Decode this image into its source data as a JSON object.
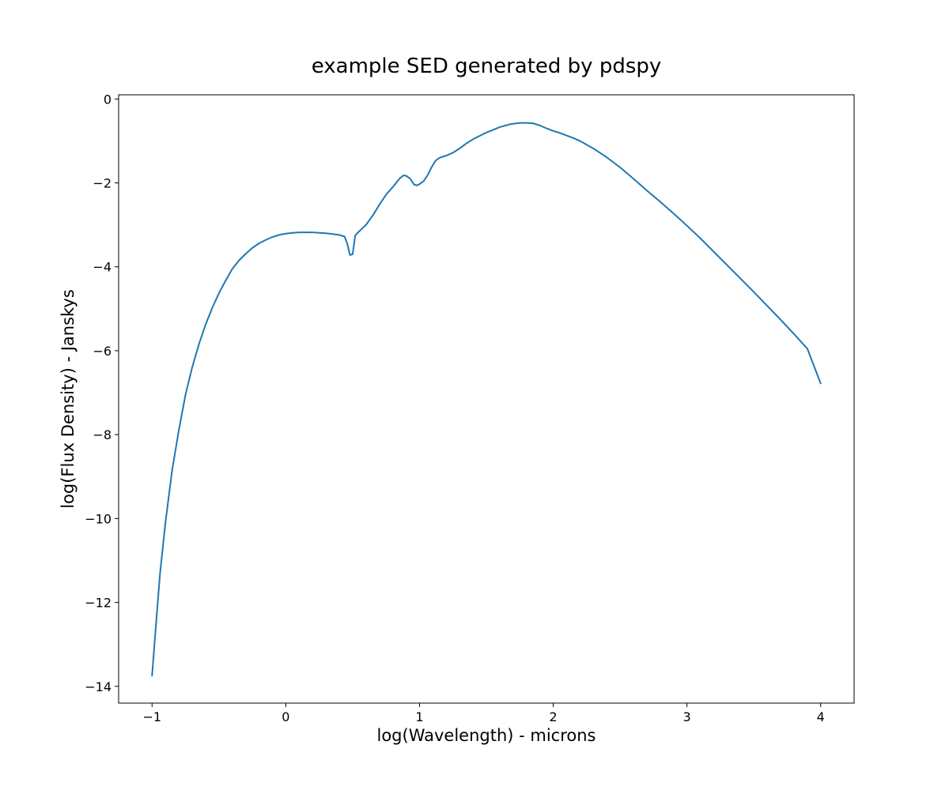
{
  "chart_data": {
    "type": "line",
    "title": "example SED generated by pdspy",
    "xlabel": "log(Wavelength) - microns",
    "ylabel": "log(Flux Density) - Janskys",
    "xlim": [
      -1.25,
      4.25
    ],
    "ylim": [
      -14.4,
      0.1
    ],
    "xticks": [
      -1,
      0,
      1,
      2,
      3,
      4
    ],
    "xtick_labels": [
      "−1",
      "0",
      "1",
      "2",
      "3",
      "4"
    ],
    "yticks": [
      0,
      -2,
      -4,
      -6,
      -8,
      -10,
      -12,
      -14
    ],
    "ytick_labels": [
      "0",
      "−2",
      "−4",
      "−6",
      "−8",
      "−10",
      "−12",
      "−14"
    ],
    "grid": false,
    "legend": "none",
    "series": [
      {
        "color": "#1f77b4",
        "x": [
          -1.0,
          -0.97,
          -0.94,
          -0.9,
          -0.85,
          -0.8,
          -0.75,
          -0.7,
          -0.65,
          -0.6,
          -0.55,
          -0.5,
          -0.45,
          -0.4,
          -0.35,
          -0.3,
          -0.25,
          -0.2,
          -0.15,
          -0.1,
          -0.05,
          0.0,
          0.05,
          0.1,
          0.15,
          0.2,
          0.25,
          0.3,
          0.35,
          0.4,
          0.44,
          0.46,
          0.48,
          0.5,
          0.52,
          0.55,
          0.6,
          0.65,
          0.7,
          0.75,
          0.8,
          0.85,
          0.88,
          0.9,
          0.93,
          0.96,
          0.98,
          1.0,
          1.03,
          1.06,
          1.09,
          1.12,
          1.15,
          1.2,
          1.25,
          1.3,
          1.35,
          1.4,
          1.5,
          1.6,
          1.68,
          1.75,
          1.8,
          1.85,
          1.9,
          1.95,
          2.0,
          2.05,
          2.1,
          2.15,
          2.2,
          2.3,
          2.4,
          2.5,
          2.6,
          2.7,
          2.8,
          2.9,
          3.0,
          3.1,
          3.2,
          3.3,
          3.4,
          3.5,
          3.6,
          3.7,
          3.8,
          3.9,
          4.0
        ],
        "y": [
          -13.75,
          -12.5,
          -11.3,
          -10.1,
          -8.85,
          -7.9,
          -7.05,
          -6.4,
          -5.85,
          -5.38,
          -4.98,
          -4.63,
          -4.33,
          -4.05,
          -3.85,
          -3.69,
          -3.55,
          -3.44,
          -3.36,
          -3.29,
          -3.24,
          -3.21,
          -3.19,
          -3.18,
          -3.18,
          -3.18,
          -3.19,
          -3.2,
          -3.22,
          -3.24,
          -3.28,
          -3.45,
          -3.72,
          -3.7,
          -3.25,
          -3.15,
          -3.0,
          -2.78,
          -2.52,
          -2.28,
          -2.1,
          -1.9,
          -1.82,
          -1.83,
          -1.9,
          -2.04,
          -2.06,
          -2.03,
          -1.96,
          -1.82,
          -1.63,
          -1.47,
          -1.4,
          -1.35,
          -1.28,
          -1.18,
          -1.06,
          -0.96,
          -0.8,
          -0.67,
          -0.6,
          -0.57,
          -0.57,
          -0.58,
          -0.63,
          -0.7,
          -0.76,
          -0.81,
          -0.87,
          -0.93,
          -1.0,
          -1.18,
          -1.39,
          -1.63,
          -1.9,
          -2.18,
          -2.45,
          -2.73,
          -3.02,
          -3.32,
          -3.64,
          -3.96,
          -4.28,
          -4.6,
          -4.93,
          -5.26,
          -5.6,
          -5.95,
          -6.78
        ]
      }
    ]
  }
}
